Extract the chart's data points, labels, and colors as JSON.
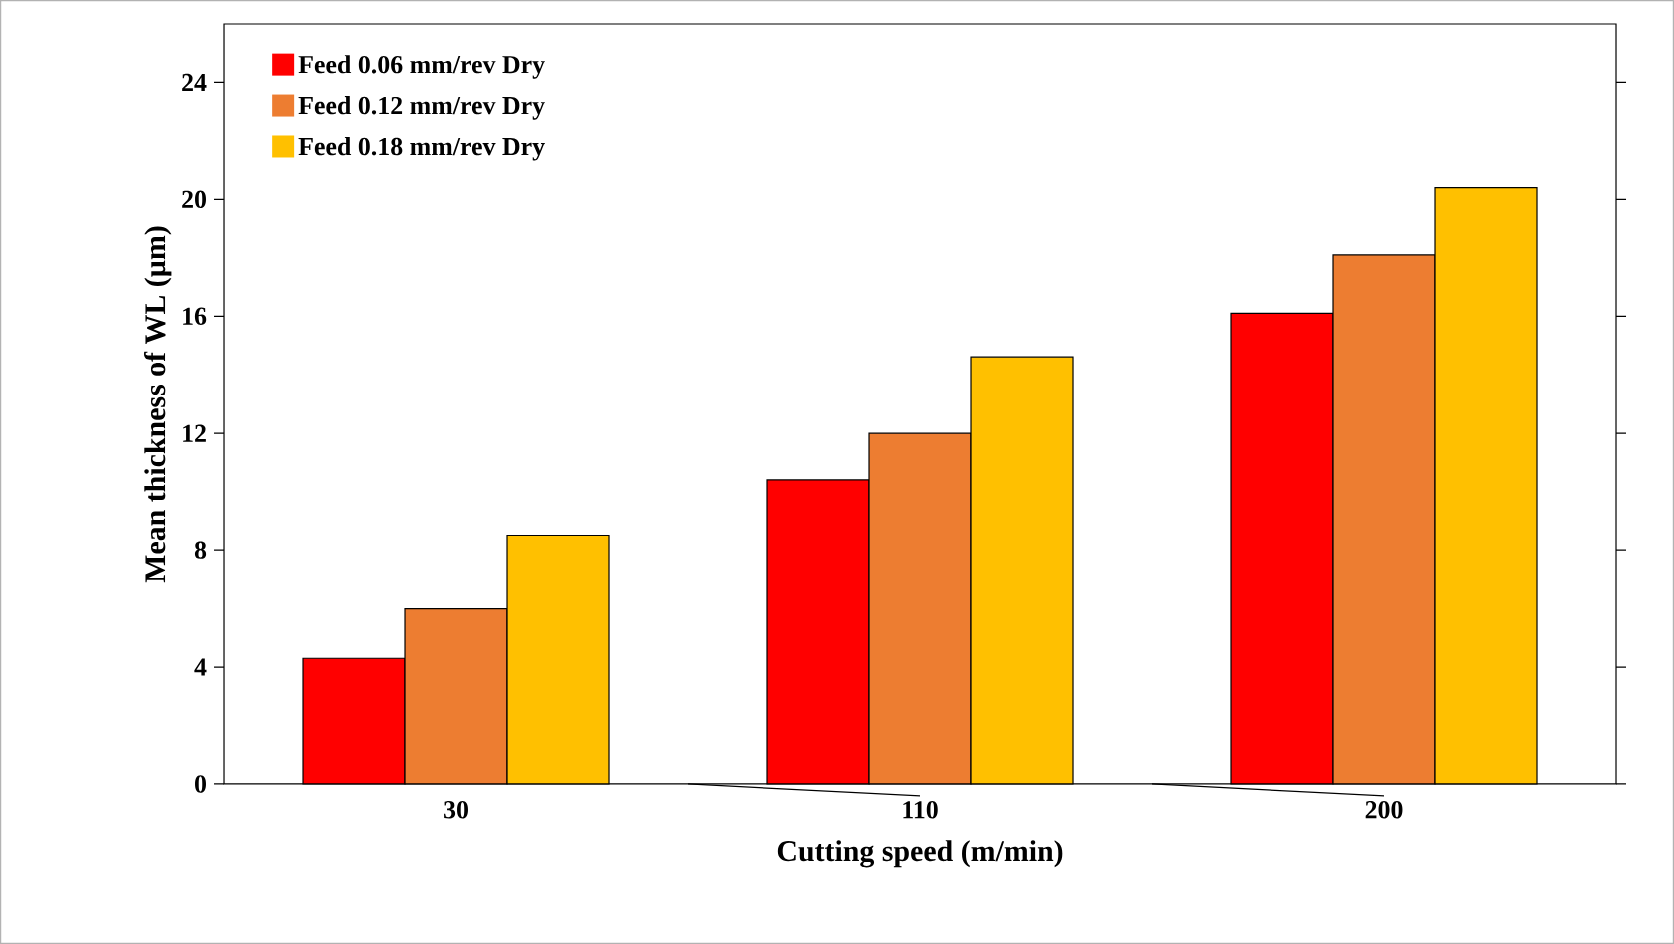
{
  "chart_data": {
    "type": "bar",
    "xlabel": "Cutting speed  (m/min)",
    "ylabel": "Mean thickness of WL (µm)",
    "categories": [
      "30",
      "110",
      "200"
    ],
    "series": [
      {
        "name": "Feed 0.06 mm/rev Dry",
        "color": "#ff0000",
        "values": [
          4.3,
          10.4,
          16.1
        ]
      },
      {
        "name": "Feed 0.12 mm/rev Dry",
        "color": "#ed7d31",
        "values": [
          6.0,
          12.0,
          18.1
        ]
      },
      {
        "name": "Feed 0.18 mm/rev Dry",
        "color": "#ffc000",
        "values": [
          8.5,
          14.6,
          20.4
        ]
      }
    ],
    "ylim": [
      0,
      26
    ],
    "yticks": [
      0,
      4,
      8,
      12,
      16,
      20,
      24
    ],
    "grid": false,
    "legend": "top left"
  }
}
